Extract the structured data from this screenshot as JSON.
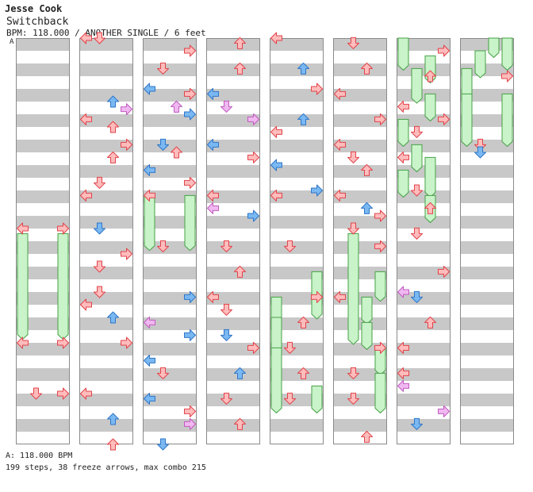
{
  "header": {
    "artist": "Jesse Cook",
    "song": "Switchback",
    "meta": "BPM: 118.000 / ANOTHER SINGLE / 6 feet",
    "bpm_marker": "A"
  },
  "footer": {
    "bpm": "A: 118.000 BPM",
    "stats": "199 steps, 38 freeze arrows, max combo 215"
  },
  "colors": {
    "stripe_gray": "#c8c8c8",
    "column_border": "#8a8a8a",
    "red_fill": "#ffbcbc",
    "red_edge": "#e0444a",
    "blue_fill": "#7ab8f2",
    "blue_edge": "#2f76c8",
    "pink_fill": "#f0b8f0",
    "pink_edge": "#c05ac0",
    "freeze_fill": "#c9f3c9",
    "freeze_edge": "#46a046"
  },
  "chart_data": {
    "type": "stepchart",
    "columns": 8,
    "beats_per_column": 32,
    "lanes": [
      "left",
      "down",
      "up",
      "right"
    ],
    "notes": [
      {
        "c": 0,
        "b": 7.5,
        "lane": "left",
        "color": "red"
      },
      {
        "c": 0,
        "b": 7.5,
        "lane": "right",
        "color": "red"
      },
      {
        "c": 0,
        "b": 12,
        "lane": "left",
        "color": "red"
      },
      {
        "c": 0,
        "b": 12,
        "lane": "right",
        "color": "red"
      },
      {
        "c": 0,
        "b": 14,
        "lane": "down",
        "color": "red"
      },
      {
        "c": 0,
        "b": 14,
        "lane": "right",
        "color": "red"
      },
      {
        "c": 1,
        "b": 0,
        "lane": "left",
        "color": "red"
      },
      {
        "c": 1,
        "b": 0,
        "lane": "down",
        "color": "red"
      },
      {
        "c": 1,
        "b": 2.5,
        "lane": "up",
        "color": "blue"
      },
      {
        "c": 1,
        "b": 2.8,
        "lane": "right",
        "color": "pink"
      },
      {
        "c": 1,
        "b": 3.2,
        "lane": "left",
        "color": "red"
      },
      {
        "c": 1,
        "b": 3.5,
        "lane": "up",
        "color": "red"
      },
      {
        "c": 1,
        "b": 4.2,
        "lane": "right",
        "color": "red"
      },
      {
        "c": 1,
        "b": 4.7,
        "lane": "up",
        "color": "red"
      },
      {
        "c": 1,
        "b": 5.7,
        "lane": "down",
        "color": "red"
      },
      {
        "c": 1,
        "b": 6.2,
        "lane": "left",
        "color": "red"
      },
      {
        "c": 1,
        "b": 7.5,
        "lane": "down",
        "color": "blue"
      },
      {
        "c": 1,
        "b": 8.5,
        "lane": "right",
        "color": "red"
      },
      {
        "c": 1,
        "b": 9,
        "lane": "down",
        "color": "red"
      },
      {
        "c": 1,
        "b": 10,
        "lane": "down",
        "color": "red"
      },
      {
        "c": 1,
        "b": 10.5,
        "lane": "left",
        "color": "red"
      },
      {
        "c": 1,
        "b": 11,
        "lane": "up",
        "color": "blue"
      },
      {
        "c": 1,
        "b": 12,
        "lane": "right",
        "color": "red"
      },
      {
        "c": 1,
        "b": 14,
        "lane": "left",
        "color": "red"
      },
      {
        "c": 1,
        "b": 15,
        "lane": "up",
        "color": "blue"
      },
      {
        "c": 1,
        "b": 16,
        "lane": "up",
        "color": "red"
      },
      {
        "c": 2,
        "b": 0.5,
        "lane": "right",
        "color": "red"
      },
      {
        "c": 2,
        "b": 1.2,
        "lane": "down",
        "color": "red"
      },
      {
        "c": 2,
        "b": 2,
        "lane": "left",
        "color": "blue"
      },
      {
        "c": 2,
        "b": 2.2,
        "lane": "right",
        "color": "red"
      },
      {
        "c": 2,
        "b": 2.7,
        "lane": "up",
        "color": "pink"
      },
      {
        "c": 2,
        "b": 3,
        "lane": "right",
        "color": "blue"
      },
      {
        "c": 2,
        "b": 4.2,
        "lane": "down",
        "color": "blue"
      },
      {
        "c": 2,
        "b": 4.5,
        "lane": "up",
        "color": "red"
      },
      {
        "c": 2,
        "b": 5.2,
        "lane": "left",
        "color": "blue"
      },
      {
        "c": 2,
        "b": 5.7,
        "lane": "right",
        "color": "red"
      },
      {
        "c": 2,
        "b": 6.2,
        "lane": "left",
        "color": "red"
      },
      {
        "c": 2,
        "b": 8.2,
        "lane": "down",
        "color": "red"
      },
      {
        "c": 2,
        "b": 10.2,
        "lane": "right",
        "color": "blue"
      },
      {
        "c": 2,
        "b": 11.2,
        "lane": "left",
        "color": "pink"
      },
      {
        "c": 2,
        "b": 11.7,
        "lane": "right",
        "color": "blue"
      },
      {
        "c": 2,
        "b": 12.7,
        "lane": "left",
        "color": "blue"
      },
      {
        "c": 2,
        "b": 13.2,
        "lane": "down",
        "color": "red"
      },
      {
        "c": 2,
        "b": 14.2,
        "lane": "left",
        "color": "blue"
      },
      {
        "c": 2,
        "b": 14.7,
        "lane": "right",
        "color": "red"
      },
      {
        "c": 2,
        "b": 15.2,
        "lane": "right",
        "color": "pink"
      },
      {
        "c": 2,
        "b": 16,
        "lane": "down",
        "color": "blue"
      },
      {
        "c": 3,
        "b": 0.2,
        "lane": "up",
        "color": "red"
      },
      {
        "c": 3,
        "b": 1.2,
        "lane": "up",
        "color": "red"
      },
      {
        "c": 3,
        "b": 2.2,
        "lane": "left",
        "color": "blue"
      },
      {
        "c": 3,
        "b": 2.7,
        "lane": "down",
        "color": "pink"
      },
      {
        "c": 3,
        "b": 3.2,
        "lane": "right",
        "color": "pink"
      },
      {
        "c": 3,
        "b": 4.2,
        "lane": "left",
        "color": "blue"
      },
      {
        "c": 3,
        "b": 4.7,
        "lane": "right",
        "color": "red"
      },
      {
        "c": 3,
        "b": 6.2,
        "lane": "left",
        "color": "red"
      },
      {
        "c": 3,
        "b": 6.7,
        "lane": "left",
        "color": "pink"
      },
      {
        "c": 3,
        "b": 7,
        "lane": "right",
        "color": "blue"
      },
      {
        "c": 3,
        "b": 8.2,
        "lane": "down",
        "color": "red"
      },
      {
        "c": 3,
        "b": 9.2,
        "lane": "up",
        "color": "red"
      },
      {
        "c": 3,
        "b": 10.2,
        "lane": "left",
        "color": "red"
      },
      {
        "c": 3,
        "b": 10.7,
        "lane": "down",
        "color": "red"
      },
      {
        "c": 3,
        "b": 11.7,
        "lane": "down",
        "color": "blue"
      },
      {
        "c": 3,
        "b": 12.2,
        "lane": "right",
        "color": "red"
      },
      {
        "c": 3,
        "b": 13.2,
        "lane": "up",
        "color": "blue"
      },
      {
        "c": 3,
        "b": 14.2,
        "lane": "down",
        "color": "red"
      },
      {
        "c": 3,
        "b": 15.2,
        "lane": "up",
        "color": "red"
      },
      {
        "c": 4,
        "b": 0,
        "lane": "left",
        "color": "red"
      },
      {
        "c": 4,
        "b": 1.2,
        "lane": "up",
        "color": "blue"
      },
      {
        "c": 4,
        "b": 2,
        "lane": "right",
        "color": "red"
      },
      {
        "c": 4,
        "b": 3.2,
        "lane": "up",
        "color": "blue"
      },
      {
        "c": 4,
        "b": 3.7,
        "lane": "left",
        "color": "red"
      },
      {
        "c": 4,
        "b": 5,
        "lane": "left",
        "color": "blue"
      },
      {
        "c": 4,
        "b": 6,
        "lane": "right",
        "color": "blue"
      },
      {
        "c": 4,
        "b": 6.2,
        "lane": "left",
        "color": "red"
      },
      {
        "c": 4,
        "b": 8.2,
        "lane": "down",
        "color": "red"
      },
      {
        "c": 4,
        "b": 10.2,
        "lane": "right",
        "color": "red"
      },
      {
        "c": 4,
        "b": 11.2,
        "lane": "up",
        "color": "red"
      },
      {
        "c": 4,
        "b": 12.2,
        "lane": "down",
        "color": "red"
      },
      {
        "c": 4,
        "b": 13.2,
        "lane": "up",
        "color": "red"
      },
      {
        "c": 4,
        "b": 14.2,
        "lane": "down",
        "color": "red"
      },
      {
        "c": 5,
        "b": 0.2,
        "lane": "down",
        "color": "red"
      },
      {
        "c": 5,
        "b": 1.2,
        "lane": "up",
        "color": "red"
      },
      {
        "c": 5,
        "b": 2.2,
        "lane": "left",
        "color": "red"
      },
      {
        "c": 5,
        "b": 3.2,
        "lane": "right",
        "color": "red"
      },
      {
        "c": 5,
        "b": 4.2,
        "lane": "left",
        "color": "red"
      },
      {
        "c": 5,
        "b": 4.7,
        "lane": "down",
        "color": "red"
      },
      {
        "c": 5,
        "b": 5.2,
        "lane": "up",
        "color": "red"
      },
      {
        "c": 5,
        "b": 6.2,
        "lane": "left",
        "color": "red"
      },
      {
        "c": 5,
        "b": 6.7,
        "lane": "up",
        "color": "blue"
      },
      {
        "c": 5,
        "b": 7,
        "lane": "right",
        "color": "red"
      },
      {
        "c": 5,
        "b": 7.5,
        "lane": "down",
        "color": "red"
      },
      {
        "c": 5,
        "b": 8.2,
        "lane": "right",
        "color": "red"
      },
      {
        "c": 5,
        "b": 10.2,
        "lane": "left",
        "color": "red"
      },
      {
        "c": 5,
        "b": 12.2,
        "lane": "right",
        "color": "red"
      },
      {
        "c": 5,
        "b": 13.2,
        "lane": "down",
        "color": "red"
      },
      {
        "c": 5,
        "b": 14.2,
        "lane": "down",
        "color": "red"
      },
      {
        "c": 5,
        "b": 15.7,
        "lane": "up",
        "color": "red"
      },
      {
        "c": 6,
        "b": 0.5,
        "lane": "right",
        "color": "red"
      },
      {
        "c": 6,
        "b": 1.5,
        "lane": "up",
        "color": "red"
      },
      {
        "c": 6,
        "b": 2.7,
        "lane": "left",
        "color": "red"
      },
      {
        "c": 6,
        "b": 3.2,
        "lane": "right",
        "color": "red"
      },
      {
        "c": 6,
        "b": 3.7,
        "lane": "down",
        "color": "red"
      },
      {
        "c": 6,
        "b": 4.7,
        "lane": "left",
        "color": "red"
      },
      {
        "c": 6,
        "b": 6,
        "lane": "down",
        "color": "red"
      },
      {
        "c": 6,
        "b": 6.7,
        "lane": "up",
        "color": "red"
      },
      {
        "c": 6,
        "b": 7.7,
        "lane": "down",
        "color": "red"
      },
      {
        "c": 6,
        "b": 9.2,
        "lane": "right",
        "color": "red"
      },
      {
        "c": 6,
        "b": 10,
        "lane": "left",
        "color": "pink"
      },
      {
        "c": 6,
        "b": 10.2,
        "lane": "down",
        "color": "blue"
      },
      {
        "c": 6,
        "b": 11.2,
        "lane": "up",
        "color": "red"
      },
      {
        "c": 6,
        "b": 12.2,
        "lane": "left",
        "color": "red"
      },
      {
        "c": 6,
        "b": 13.2,
        "lane": "left",
        "color": "red"
      },
      {
        "c": 6,
        "b": 13.7,
        "lane": "left",
        "color": "pink"
      },
      {
        "c": 6,
        "b": 14.7,
        "lane": "right",
        "color": "pink"
      },
      {
        "c": 6,
        "b": 15.2,
        "lane": "down",
        "color": "blue"
      },
      {
        "c": 7,
        "b": 1.5,
        "lane": "right",
        "color": "red"
      },
      {
        "c": 7,
        "b": 4.2,
        "lane": "down",
        "color": "red"
      },
      {
        "c": 7,
        "b": 4.5,
        "lane": "down",
        "color": "blue"
      }
    ],
    "holds": [
      {
        "c": 0,
        "b1": 7.7,
        "b2": 11.8,
        "lane": "left"
      },
      {
        "c": 0,
        "b1": 7.7,
        "b2": 11.8,
        "lane": "right"
      },
      {
        "c": 2,
        "b1": 6.2,
        "b2": 8.3,
        "lane": "left"
      },
      {
        "c": 2,
        "b1": 6.2,
        "b2": 8.3,
        "lane": "right"
      },
      {
        "c": 4,
        "b1": 9.2,
        "b2": 11,
        "lane": "right"
      },
      {
        "c": 4,
        "b1": 10.2,
        "b2": 12.2,
        "lane": "left"
      },
      {
        "c": 4,
        "b1": 11,
        "b2": 13.2,
        "lane": "left"
      },
      {
        "c": 4,
        "b1": 12.2,
        "b2": 14.7,
        "lane": "left"
      },
      {
        "c": 4,
        "b1": 13.7,
        "b2": 14.7,
        "lane": "right"
      },
      {
        "c": 5,
        "b1": 7.7,
        "b2": 12,
        "lane": "down"
      },
      {
        "c": 5,
        "b1": 9.2,
        "b2": 10.3,
        "lane": "right"
      },
      {
        "c": 5,
        "b1": 10.2,
        "b2": 11.2,
        "lane": "up"
      },
      {
        "c": 5,
        "b1": 11.2,
        "b2": 12.2,
        "lane": "up"
      },
      {
        "c": 5,
        "b1": 12.2,
        "b2": 13.2,
        "lane": "right"
      },
      {
        "c": 5,
        "b1": 13.2,
        "b2": 14.7,
        "lane": "right"
      },
      {
        "c": 6,
        "b1": 0,
        "b2": 1.2,
        "lane": "left"
      },
      {
        "c": 6,
        "b1": 0.7,
        "b2": 1.7,
        "lane": "up"
      },
      {
        "c": 6,
        "b1": 1.2,
        "b2": 2.5,
        "lane": "down"
      },
      {
        "c": 6,
        "b1": 2.2,
        "b2": 3.2,
        "lane": "up"
      },
      {
        "c": 6,
        "b1": 3.2,
        "b2": 4.2,
        "lane": "left"
      },
      {
        "c": 6,
        "b1": 4.2,
        "b2": 5.2,
        "lane": "down"
      },
      {
        "c": 6,
        "b1": 4.7,
        "b2": 6.2,
        "lane": "up"
      },
      {
        "c": 6,
        "b1": 5.2,
        "b2": 6.2,
        "lane": "left"
      },
      {
        "c": 6,
        "b1": 6.2,
        "b2": 7.2,
        "lane": "up"
      },
      {
        "c": 7,
        "b1": 0,
        "b2": 0.7,
        "lane": "up"
      },
      {
        "c": 7,
        "b1": 0.5,
        "b2": 1.5,
        "lane": "down"
      },
      {
        "c": 7,
        "b1": 0,
        "b2": 1.2,
        "lane": "right"
      },
      {
        "c": 7,
        "b1": 1.2,
        "b2": 2.5,
        "lane": "left"
      },
      {
        "c": 7,
        "b1": 2.2,
        "b2": 4.2,
        "lane": "left"
      },
      {
        "c": 7,
        "b1": 2.2,
        "b2": 4.2,
        "lane": "right"
      }
    ]
  }
}
